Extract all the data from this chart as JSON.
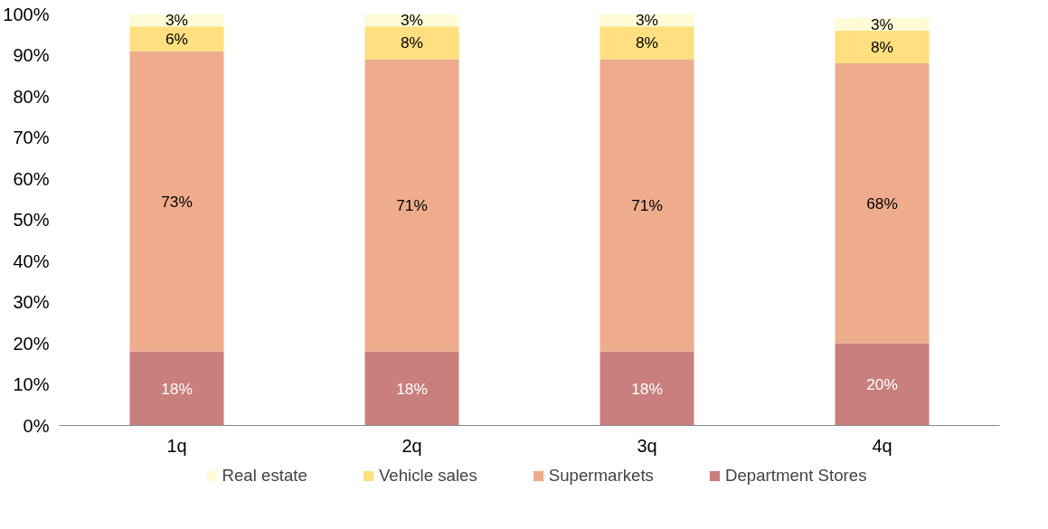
{
  "chart_data": {
    "type": "bar",
    "stacked": true,
    "categories": [
      "1q",
      "2q",
      "3q",
      "4q"
    ],
    "series": [
      {
        "name": "Department Stores",
        "color": "#c97f7d",
        "values": [
          18,
          18,
          18,
          20
        ],
        "value_labels": [
          "18%",
          "18%",
          "18%",
          "20%"
        ]
      },
      {
        "name": "Supermarkets",
        "color": "#eeac8c",
        "values": [
          73,
          71,
          71,
          68
        ],
        "value_labels": [
          "73%",
          "71%",
          "71%",
          "68%"
        ]
      },
      {
        "name": "Vehicle sales",
        "color": "#ffdf80",
        "values": [
          6,
          8,
          8,
          8
        ],
        "value_labels": [
          "6%",
          "8%",
          "8%",
          "8%"
        ]
      },
      {
        "name": "Real estate",
        "color": "#fffbd6",
        "values": [
          3,
          3,
          3,
          3
        ],
        "value_labels": [
          "3%",
          "3%",
          "3%",
          "3%"
        ]
      }
    ],
    "ylim": [
      0,
      100
    ],
    "yticks": [
      {
        "value": 0,
        "label": "0%"
      },
      {
        "value": 10,
        "label": "10%"
      },
      {
        "value": 20,
        "label": "20%"
      },
      {
        "value": 30,
        "label": "30%"
      },
      {
        "value": 40,
        "label": "40%"
      },
      {
        "value": 50,
        "label": "50%"
      },
      {
        "value": 60,
        "label": "60%"
      },
      {
        "value": 70,
        "label": "70%"
      },
      {
        "value": 80,
        "label": "80%"
      },
      {
        "value": 90,
        "label": "90%"
      },
      {
        "value": 100,
        "label": "100%"
      }
    ],
    "data_labels": true,
    "grid": false,
    "legend": "bottom"
  }
}
